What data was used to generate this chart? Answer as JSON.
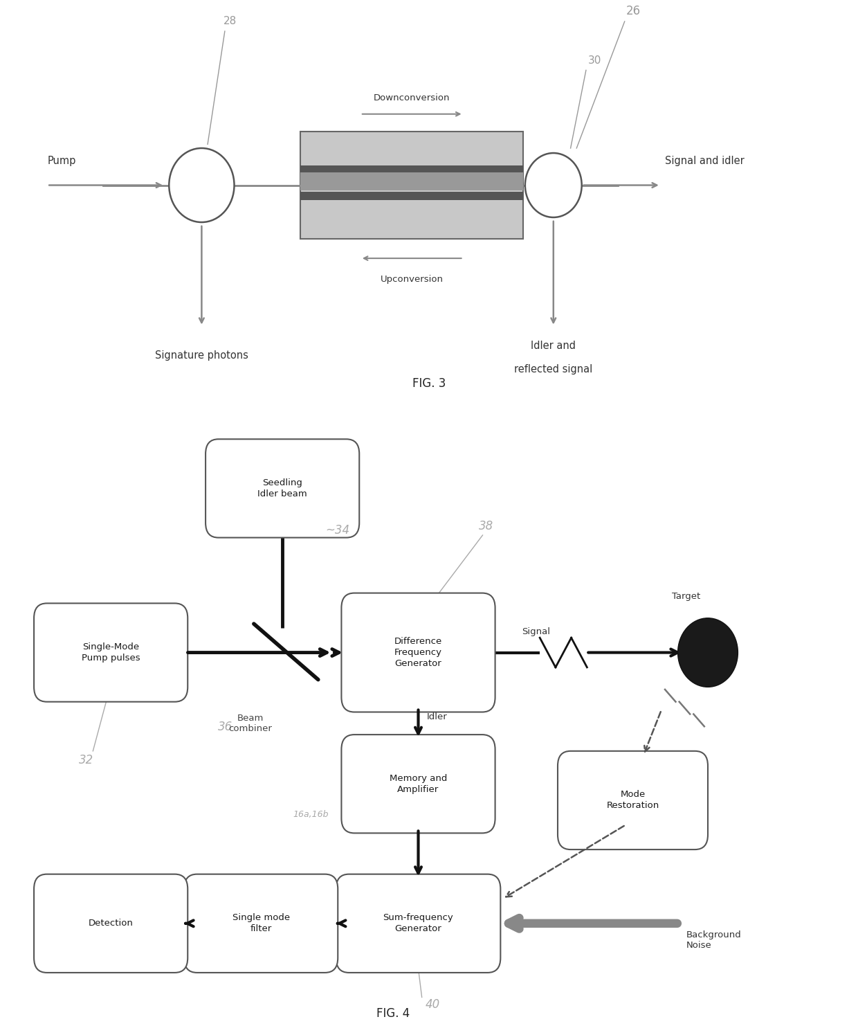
{
  "bg_color": "#ffffff",
  "fig3": {
    "title": "FIG. 3",
    "label_26": "26",
    "label_28": "28",
    "label_30": "30",
    "text_pump": "Pump",
    "text_signal_idler": "Signal and idler",
    "text_signature": "Signature photons",
    "text_idler_and": "Idler and",
    "text_reflected": "reflected signal",
    "text_downconversion": "Downconversion",
    "text_upconversion": "Upconversion"
  },
  "fig4": {
    "title": "FIG. 4",
    "label_32": "32",
    "label_34": "34",
    "label_36": "36",
    "label_38": "38",
    "label_40": "40",
    "label_16ab": "16a,16b",
    "box_single_mode": "Single-Mode\nPump pulses",
    "box_seedling": "Seedling\nIdler beam",
    "box_dfg": "Difference\nFrequency\nGenerator",
    "box_memory": "Memory and\nAmplifier",
    "box_mode_rest": "Mode\nRestoration",
    "box_sfg": "Sum-frequency\nGenerator",
    "box_single_filter": "Single mode\nfilter",
    "box_detection": "Detection",
    "text_beam_combiner": "Beam\ncombiner",
    "text_signal": "Signal",
    "text_idler": "Idler",
    "text_target": "Target",
    "text_background": "Background\nNoise"
  }
}
